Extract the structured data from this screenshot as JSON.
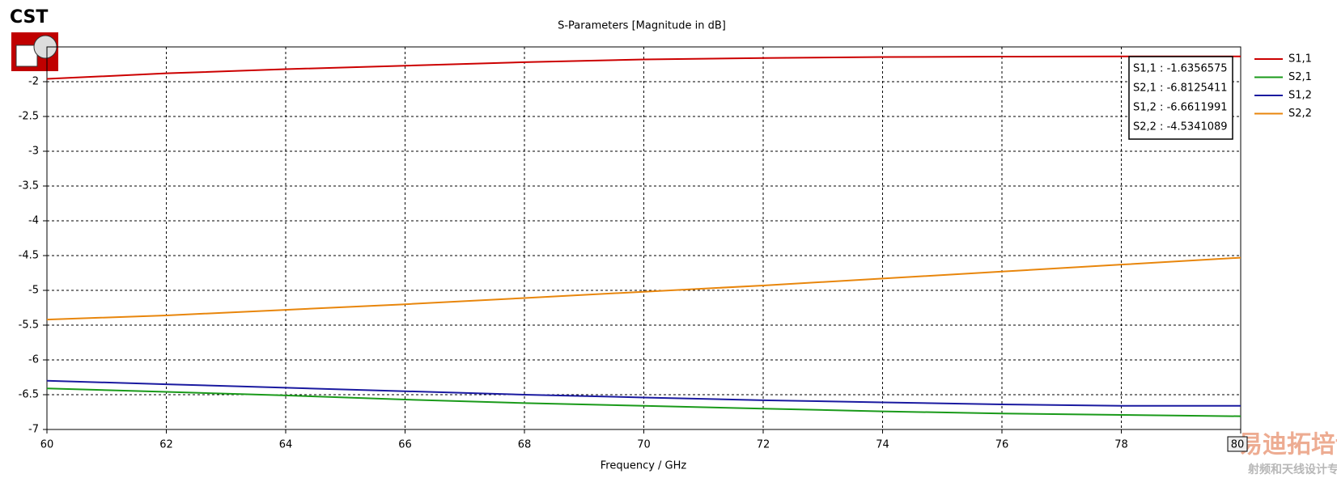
{
  "chart_data": {
    "type": "line",
    "title": "S-Parameters [Magnitude in dB]",
    "x_label": "Frequency / GHz",
    "logo": "CST",
    "x": [
      60,
      62,
      64,
      66,
      68,
      70,
      72,
      74,
      76,
      78,
      80
    ],
    "series": [
      {
        "name": "S1,1",
        "color": "#cc0000",
        "values": [
          -1.96,
          -1.88,
          -1.82,
          -1.77,
          -1.72,
          -1.68,
          -1.66,
          -1.645,
          -1.64,
          -1.637,
          -1.636
        ]
      },
      {
        "name": "S2,1",
        "color": "#1a9a1a",
        "values": [
          -6.41,
          -6.46,
          -6.51,
          -6.57,
          -6.62,
          -6.66,
          -6.7,
          -6.74,
          -6.77,
          -6.79,
          -6.81
        ]
      },
      {
        "name": "S1,2",
        "color": "#1a1aa0",
        "values": [
          -6.3,
          -6.35,
          -6.4,
          -6.45,
          -6.5,
          -6.54,
          -6.58,
          -6.61,
          -6.64,
          -6.66,
          -6.66
        ]
      },
      {
        "name": "S2,2",
        "color": "#e8860c",
        "values": [
          -5.42,
          -5.36,
          -5.28,
          -5.2,
          -5.11,
          -5.02,
          -4.93,
          -4.83,
          -4.73,
          -4.63,
          -4.53
        ]
      }
    ],
    "marker_labels": [
      "S1,1 : -1.6356575",
      "S2,1 : -6.8125411",
      "S1,2 : -6.6611991",
      "S2,2 : -4.5341089"
    ],
    "xlim": [
      60,
      80
    ],
    "xticks": [
      60,
      62,
      64,
      66,
      68,
      70,
      72,
      74,
      76,
      78,
      80
    ],
    "ylim": [
      -7,
      -1.5
    ],
    "yticks": [
      -7,
      -6.5,
      -6,
      -5.5,
      -5,
      -4.5,
      -4,
      -3.5,
      -3,
      -2.5,
      -2
    ],
    "grid": true,
    "watermark": [
      "易迪拓培训",
      "射频和天线设计专家"
    ]
  }
}
